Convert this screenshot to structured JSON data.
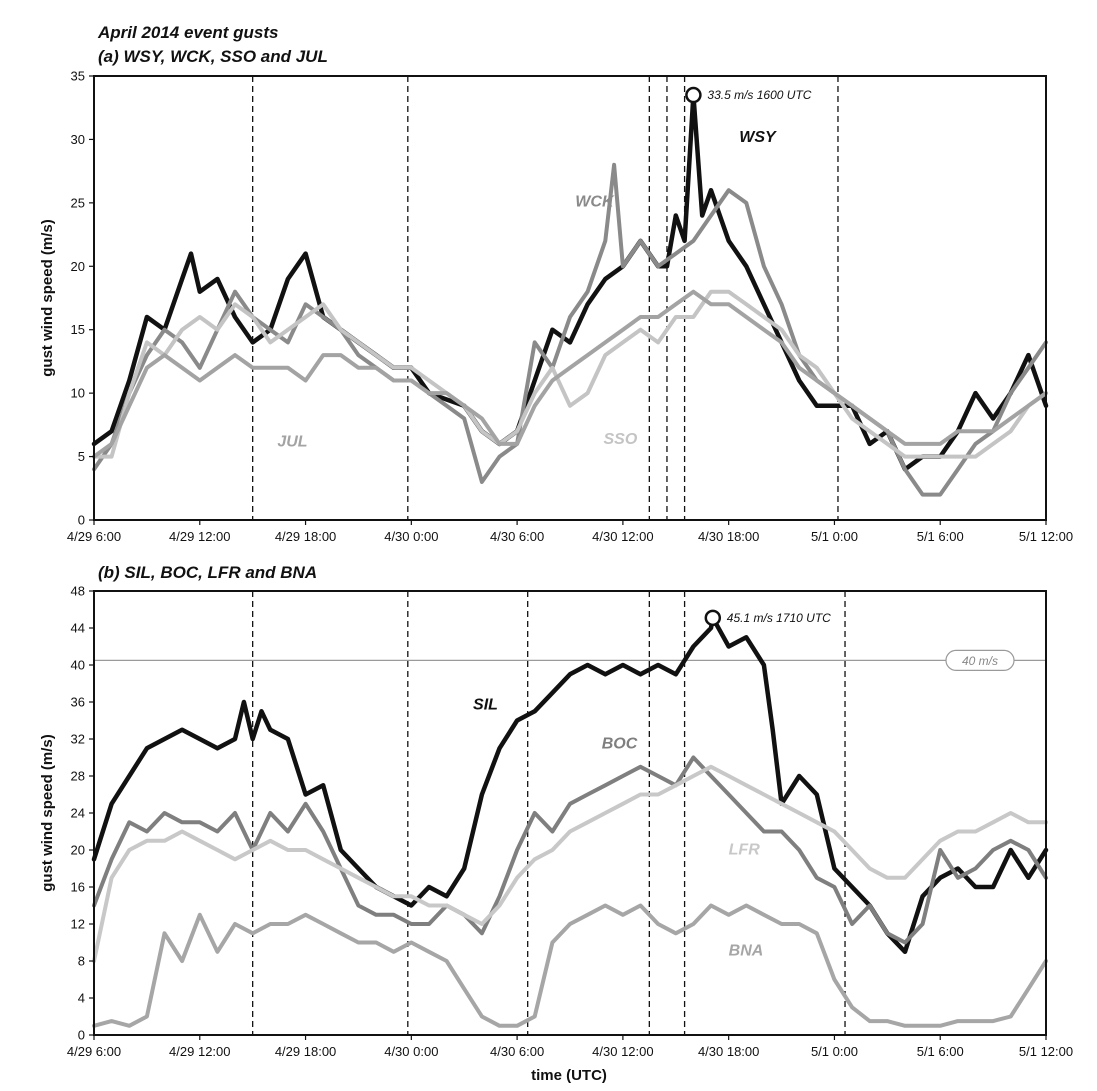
{
  "figure": {
    "title": "April 2014 event gusts",
    "xlabel": "time (UTC)"
  },
  "chart_data": [
    {
      "type": "line",
      "title": "(a) WSY, WCK, SSO and JUL",
      "ylabel": "gust wind speed (m/s)",
      "ylim": [
        0,
        35
      ],
      "yticks": [
        0,
        5,
        10,
        15,
        20,
        25,
        30,
        35
      ],
      "x_unit": "hours since 4/29 6:00",
      "xlim": [
        0,
        54
      ],
      "xticks": [
        {
          "x": 0,
          "label": "4/29 6:00"
        },
        {
          "x": 6,
          "label": "4/29 12:00"
        },
        {
          "x": 12,
          "label": "4/29 18:00"
        },
        {
          "x": 18,
          "label": "4/30 0:00"
        },
        {
          "x": 24,
          "label": "4/30 6:00"
        },
        {
          "x": 30,
          "label": "4/30 12:00"
        },
        {
          "x": 36,
          "label": "4/30 18:00"
        },
        {
          "x": 42,
          "label": "5/1 0:00"
        },
        {
          "x": 48,
          "label": "5/1 6:00"
        },
        {
          "x": 54,
          "label": "5/1 12:00"
        }
      ],
      "vlines": [
        9,
        17.8,
        31.5,
        32.5,
        33.5,
        42.2
      ],
      "peak": {
        "x": 34.0,
        "y": 33.5,
        "label": "33.5 m/s 1600 UTC"
      },
      "series": [
        {
          "name": "WSY",
          "color": "#111111",
          "width": 4.5,
          "label_pos": [
            36.6,
            29.8
          ],
          "x": [
            0,
            1,
            2,
            3,
            4,
            5,
            5.5,
            6,
            7,
            8,
            9,
            10,
            11,
            11.5,
            12,
            13,
            14,
            15,
            16,
            17,
            18,
            19,
            20,
            21,
            22,
            23,
            24,
            25,
            26,
            27,
            28,
            29,
            30,
            31,
            32,
            32.5,
            33,
            33.5,
            34,
            34.5,
            35,
            36,
            37,
            38,
            39,
            40,
            41,
            42,
            43,
            44,
            45,
            46,
            47,
            48,
            49,
            50,
            51,
            52,
            53,
            54
          ],
          "y": [
            6,
            7,
            11,
            16,
            15,
            19,
            21,
            18,
            19,
            16,
            14,
            15,
            19,
            20,
            21,
            16,
            15,
            14,
            13,
            12,
            12,
            10,
            9.5,
            9,
            7,
            6,
            7,
            11,
            15,
            14,
            17,
            19,
            20,
            22,
            20,
            20,
            24,
            22,
            33.5,
            24,
            26,
            22,
            20,
            17,
            14,
            11,
            9,
            9,
            9,
            6,
            7,
            4,
            5,
            5,
            7,
            10,
            8,
            10,
            13,
            9
          ]
        },
        {
          "name": "WCK",
          "color": "#8a8a8a",
          "width": 4,
          "label_pos": [
            27.3,
            24.7
          ],
          "x": [
            0,
            1,
            2,
            3,
            4,
            5,
            6,
            7,
            8,
            9,
            10,
            11,
            12,
            13,
            14,
            15,
            16,
            17,
            18,
            19,
            20,
            21,
            22,
            23,
            24,
            25,
            26,
            27,
            28,
            29,
            29.5,
            30,
            31,
            32,
            33,
            34,
            35,
            36,
            37,
            38,
            39,
            40,
            41,
            42,
            43,
            44,
            45,
            46,
            47,
            48,
            49,
            50,
            51,
            52,
            53,
            54
          ],
          "y": [
            4,
            6,
            10,
            13,
            15,
            14,
            12,
            15,
            18,
            16,
            15,
            14,
            17,
            16,
            15,
            13,
            12,
            11,
            11,
            10,
            9,
            8,
            3,
            5,
            6,
            14,
            12,
            16,
            18,
            22,
            28,
            20,
            22,
            20,
            21,
            22,
            24,
            26,
            25,
            20,
            17,
            13,
            11,
            10,
            9,
            8,
            7,
            4,
            2,
            2,
            4,
            6,
            7,
            10,
            12,
            14
          ]
        },
        {
          "name": "SSO",
          "color": "#c4c4c4",
          "width": 4,
          "label_pos": [
            28.9,
            6.0
          ],
          "x": [
            0,
            1,
            2,
            3,
            4,
            5,
            6,
            7,
            8,
            9,
            10,
            11,
            12,
            13,
            14,
            15,
            16,
            17,
            18,
            19,
            20,
            21,
            22,
            23,
            24,
            25,
            26,
            27,
            28,
            29,
            30,
            31,
            32,
            33,
            34,
            35,
            36,
            37,
            38,
            39,
            40,
            41,
            42,
            43,
            44,
            45,
            46,
            47,
            48,
            49,
            50,
            51,
            52,
            53,
            54
          ],
          "y": [
            5,
            5,
            10,
            14,
            13,
            15,
            16,
            15,
            17,
            16,
            14,
            15,
            16,
            17,
            15,
            14,
            13,
            12,
            12,
            11,
            10,
            9,
            7,
            6,
            7,
            10,
            12,
            9,
            10,
            13,
            14,
            15,
            14,
            16,
            16,
            18,
            18,
            17,
            16,
            15,
            13,
            12,
            10,
            8,
            7,
            6,
            5,
            5,
            5,
            5,
            5,
            6,
            7,
            9,
            10
          ]
        },
        {
          "name": "JUL",
          "color": "#a3a3a3",
          "width": 4,
          "label_pos": [
            10.4,
            5.8
          ],
          "x": [
            0,
            1,
            2,
            3,
            4,
            5,
            6,
            7,
            8,
            9,
            10,
            11,
            12,
            13,
            14,
            15,
            16,
            17,
            18,
            19,
            20,
            21,
            22,
            23,
            24,
            25,
            26,
            27,
            28,
            29,
            30,
            31,
            32,
            33,
            34,
            35,
            36,
            37,
            38,
            39,
            40,
            41,
            42,
            43,
            44,
            45,
            46,
            47,
            48,
            49,
            50,
            51,
            52,
            53,
            54
          ],
          "y": [
            5,
            6,
            9,
            12,
            13,
            12,
            11,
            12,
            13,
            12,
            12,
            12,
            11,
            13,
            13,
            12,
            12,
            11,
            11,
            10,
            10,
            9,
            8,
            6,
            6,
            9,
            11,
            12,
            13,
            14,
            15,
            16,
            16,
            17,
            18,
            17,
            17,
            16,
            15,
            14,
            12,
            11,
            10,
            9,
            8,
            7,
            6,
            6,
            6,
            7,
            7,
            7,
            8,
            9,
            10
          ]
        }
      ]
    },
    {
      "type": "line",
      "title": "(b) SIL, BOC, LFR and BNA",
      "ylabel": "gust wind speed (m/s)",
      "ylim": [
        0,
        48
      ],
      "yticks": [
        0,
        4,
        8,
        12,
        16,
        20,
        24,
        28,
        32,
        36,
        40,
        44,
        48
      ],
      "x_unit": "hours since 4/29 6:00",
      "xlim": [
        0,
        54
      ],
      "xticks": [
        {
          "x": 0,
          "label": "4/29 6:00"
        },
        {
          "x": 6,
          "label": "4/29 12:00"
        },
        {
          "x": 12,
          "label": "4/29 18:00"
        },
        {
          "x": 18,
          "label": "4/30 0:00"
        },
        {
          "x": 24,
          "label": "4/30 6:00"
        },
        {
          "x": 30,
          "label": "4/30 12:00"
        },
        {
          "x": 36,
          "label": "4/30 18:00"
        },
        {
          "x": 42,
          "label": "5/1 0:00"
        },
        {
          "x": 48,
          "label": "5/1 6:00"
        },
        {
          "x": 54,
          "label": "5/1 12:00"
        }
      ],
      "vlines": [
        9,
        17.8,
        24.6,
        31.5,
        33.5,
        42.6
      ],
      "hline": {
        "y": 40.5,
        "label": "40 m/s"
      },
      "peak": {
        "x": 35.1,
        "y": 45.1,
        "label": "45.1 m/s 1710 UTC"
      },
      "series": [
        {
          "name": "SIL",
          "color": "#111111",
          "width": 4.5,
          "label_pos": [
            21.5,
            35.2
          ],
          "x": [
            0,
            1,
            2,
            3,
            4,
            5,
            6,
            7,
            8,
            8.5,
            9,
            9.5,
            10,
            11,
            12,
            13,
            14,
            15,
            16,
            17,
            18,
            19,
            20,
            21,
            22,
            23,
            24,
            25,
            26,
            27,
            28,
            29,
            30,
            31,
            32,
            33,
            34,
            35,
            35.1,
            36,
            37,
            38,
            38.5,
            39,
            40,
            41,
            42,
            43,
            44,
            45,
            46,
            47,
            48,
            49,
            50,
            51,
            52,
            53,
            54
          ],
          "y": [
            19,
            25,
            28,
            31,
            32,
            33,
            32,
            31,
            32,
            36,
            32,
            35,
            33,
            32,
            26,
            27,
            20,
            18,
            16,
            15,
            14,
            16,
            15,
            18,
            26,
            31,
            34,
            35,
            37,
            39,
            40,
            39,
            40,
            39,
            40,
            39,
            42,
            44,
            45.1,
            42,
            43,
            40,
            33,
            25,
            28,
            26,
            18,
            16,
            14,
            11,
            9,
            15,
            17,
            18,
            16,
            16,
            20,
            17,
            20
          ]
        },
        {
          "name": "BOC",
          "color": "#7f7f7f",
          "width": 4,
          "label_pos": [
            28.8,
            31.0
          ],
          "x": [
            0,
            1,
            2,
            3,
            4,
            5,
            6,
            7,
            8,
            9,
            10,
            11,
            12,
            13,
            14,
            15,
            16,
            17,
            18,
            19,
            20,
            21,
            22,
            23,
            24,
            25,
            26,
            27,
            28,
            29,
            30,
            31,
            32,
            33,
            34,
            35,
            36,
            37,
            38,
            39,
            40,
            41,
            42,
            43,
            44,
            45,
            46,
            47,
            48,
            49,
            50,
            51,
            52,
            53,
            54
          ],
          "y": [
            14,
            19,
            23,
            22,
            24,
            23,
            23,
            22,
            24,
            20,
            24,
            22,
            25,
            22,
            18,
            14,
            13,
            13,
            12,
            12,
            14,
            13,
            11,
            15,
            20,
            24,
            22,
            25,
            26,
            27,
            28,
            29,
            28,
            27,
            30,
            28,
            26,
            24,
            22,
            22,
            20,
            17,
            16,
            12,
            14,
            11,
            10,
            12,
            20,
            17,
            18,
            20,
            21,
            20,
            17
          ]
        },
        {
          "name": "LFR",
          "color": "#c8c8c8",
          "width": 4,
          "label_pos": [
            36.0,
            19.5
          ],
          "x": [
            0,
            1,
            2,
            3,
            4,
            5,
            6,
            7,
            8,
            9,
            10,
            11,
            12,
            13,
            14,
            15,
            16,
            17,
            18,
            19,
            20,
            21,
            22,
            23,
            24,
            25,
            26,
            27,
            28,
            29,
            30,
            31,
            32,
            33,
            34,
            35,
            36,
            37,
            38,
            39,
            40,
            41,
            42,
            43,
            44,
            45,
            46,
            47,
            48,
            49,
            50,
            51,
            52,
            53,
            54
          ],
          "y": [
            8,
            17,
            20,
            21,
            21,
            22,
            21,
            20,
            19,
            20,
            21,
            20,
            20,
            19,
            18,
            17,
            16,
            15,
            15,
            14,
            14,
            13,
            12,
            14,
            17,
            19,
            20,
            22,
            23,
            24,
            25,
            26,
            26,
            27,
            28,
            29,
            28,
            27,
            26,
            25,
            24,
            23,
            22,
            20,
            18,
            17,
            17,
            19,
            21,
            22,
            22,
            23,
            24,
            23,
            23
          ]
        },
        {
          "name": "BNA",
          "color": "#a6a6a6",
          "width": 4,
          "label_pos": [
            36.0,
            8.6
          ],
          "x": [
            0,
            1,
            2,
            3,
            4,
            5,
            6,
            7,
            8,
            9,
            10,
            11,
            12,
            13,
            14,
            15,
            16,
            17,
            18,
            19,
            20,
            21,
            22,
            23,
            24,
            25,
            26,
            27,
            28,
            29,
            30,
            31,
            32,
            33,
            34,
            35,
            36,
            37,
            38,
            39,
            40,
            41,
            42,
            43,
            44,
            45,
            46,
            47,
            48,
            49,
            50,
            51,
            52,
            53,
            54
          ],
          "y": [
            1,
            1.5,
            1,
            2,
            11,
            8,
            13,
            9,
            12,
            11,
            12,
            12,
            13,
            12,
            11,
            10,
            10,
            9,
            10,
            9,
            8,
            5,
            2,
            1,
            1,
            2,
            10,
            12,
            13,
            14,
            13,
            14,
            12,
            11,
            12,
            14,
            13,
            14,
            13,
            12,
            12,
            11,
            6,
            3,
            1.5,
            1.5,
            1,
            1,
            1,
            1.5,
            1.5,
            1.5,
            2,
            5,
            8
          ]
        }
      ]
    }
  ]
}
